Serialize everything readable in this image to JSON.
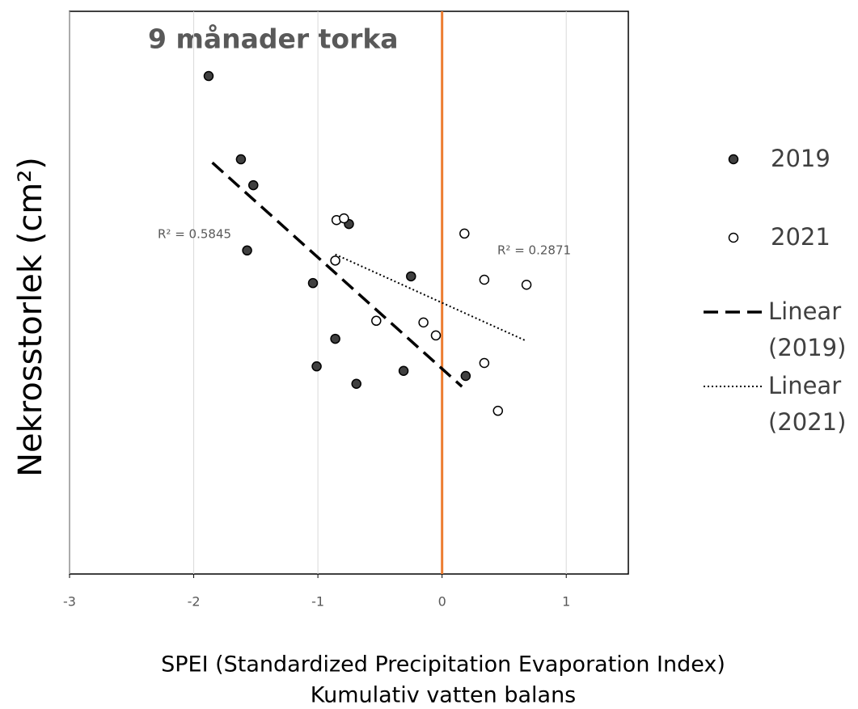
{
  "chart_data": {
    "type": "scatter",
    "title": "9 månader torka",
    "ylabel": "Nekrosstorlek (cm²)",
    "xlabel": [
      "SPEI (Standardized Precipitation Evaporation Index)",
      "Kumulativ vatten balans"
    ],
    "xlim": [
      -3,
      1.5
    ],
    "xticks": [
      -3,
      -2,
      -1,
      0,
      1
    ],
    "ylim": [
      0,
      100
    ],
    "grid": "x",
    "reference_line": {
      "x": 0,
      "color": "#ed7d31"
    },
    "series": [
      {
        "name": "2019",
        "color": "#404040",
        "edgecolor": "#000000",
        "x": [
          -1.88,
          -1.62,
          -1.52,
          -0.75,
          -1.57,
          -1.04,
          -0.25,
          -0.86,
          -1.01,
          -0.31,
          -0.69,
          0.19
        ],
        "values": [
          88.5,
          73.7,
          69.1,
          62.2,
          57.5,
          51.7,
          52.9,
          41.8,
          36.9,
          36.1,
          33.8,
          35.2
        ]
      },
      {
        "name": "2021",
        "color": "#ffffff",
        "edgecolor": "#000000",
        "x": [
          -0.85,
          -0.79,
          0.18,
          -0.86,
          0.34,
          0.68,
          -0.53,
          -0.15,
          -0.05,
          0.34,
          0.45
        ],
        "values": [
          62.9,
          63.2,
          60.5,
          55.7,
          52.3,
          51.4,
          45.0,
          44.7,
          42.4,
          37.5,
          29.0
        ]
      }
    ],
    "trendlines": [
      {
        "name": "Linear (2019)",
        "style": "dashed",
        "color": "#000000",
        "x": [
          -1.85,
          0.16
        ],
        "values": [
          73.1,
          33.3
        ],
        "annotation": "R² = 0.5845"
      },
      {
        "name": "Linear (2021)",
        "style": "dotted",
        "color": "#000000",
        "x": [
          -0.86,
          0.68
        ],
        "values": [
          56.8,
          41.4
        ],
        "annotation": "R² = 0.2871"
      }
    ],
    "legend": "right"
  }
}
